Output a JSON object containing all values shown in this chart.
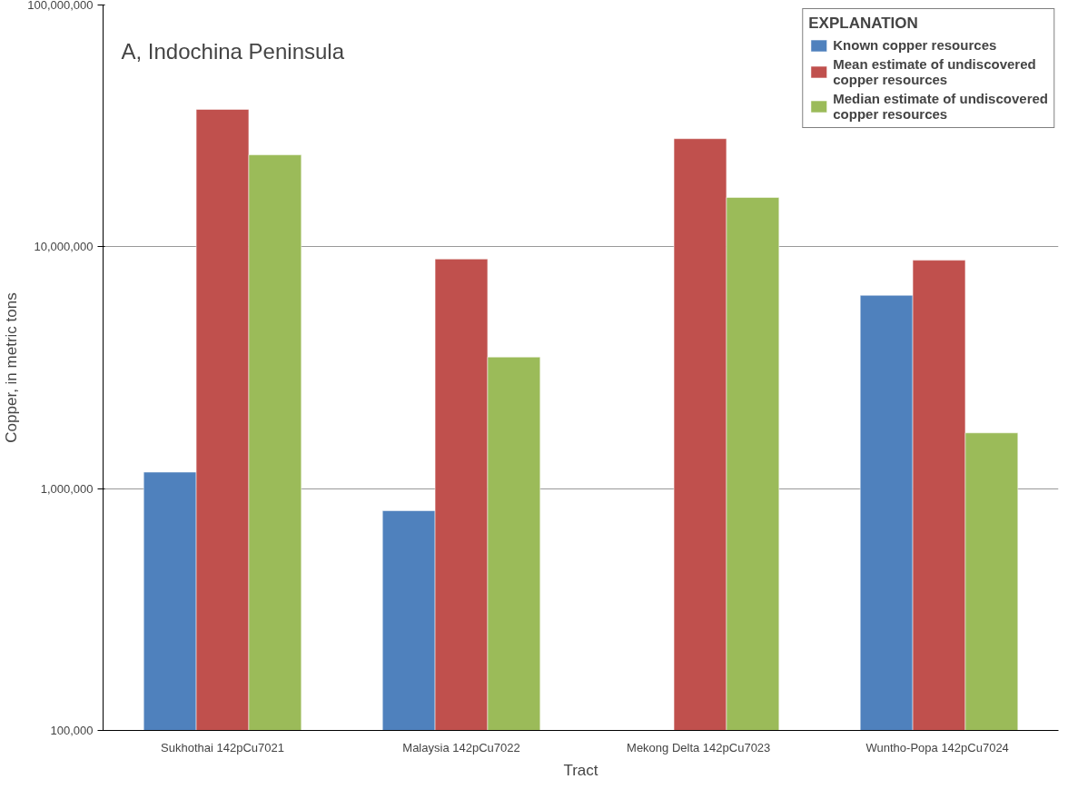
{
  "chart_data": {
    "type": "bar",
    "title": "A, Indochina Peninsula",
    "xlabel": "Tract",
    "ylabel": "Copper, in metric tons",
    "legend_title": "EXPLANATION",
    "categories": [
      "Sukhothai 142pCu7021",
      "Malaysia 142pCu7022",
      "Mekong Delta  142pCu7023",
      "Wuntho-Popa  142pCu7024"
    ],
    "series": [
      {
        "name": "Known copper resources",
        "color": "#4f81bd",
        "values": [
          1170000,
          810000,
          null,
          6300000
        ]
      },
      {
        "name": "Mean estimate of undiscovered copper resources",
        "color": "#c0504d",
        "values": [
          37000000,
          8900000,
          28000000,
          8800000
        ]
      },
      {
        "name": "Median estimate of undiscovered copper resources",
        "color": "#9bbb59",
        "values": [
          24000000,
          3500000,
          16000000,
          1700000
        ]
      }
    ],
    "log": true,
    "ylim": [
      100000,
      100000000
    ],
    "yticks": [
      {
        "value": 100000,
        "label": "100,000"
      },
      {
        "value": 1000000,
        "label": "1,000,000"
      },
      {
        "value": 10000000,
        "label": "10,000,000"
      },
      {
        "value": 100000000,
        "label": "100,000,000"
      }
    ],
    "grid": "y",
    "legend": "top right"
  }
}
